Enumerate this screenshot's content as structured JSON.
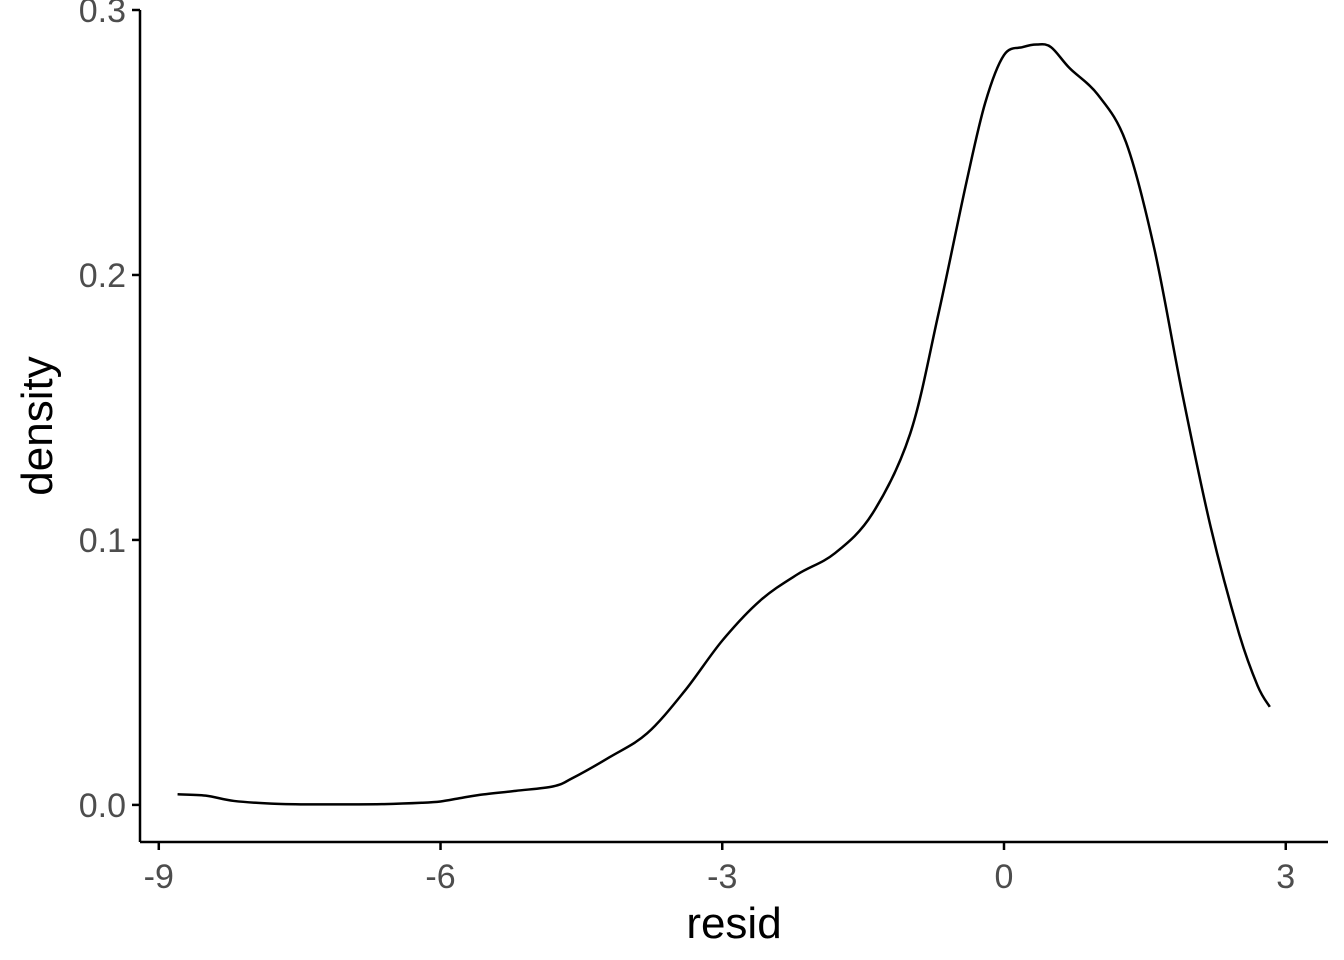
{
  "chart_data": {
    "type": "line",
    "title": "",
    "xlabel": "resid",
    "ylabel": "density",
    "xlim": [
      -9.2,
      3.45
    ],
    "ylim": [
      -0.014,
      0.3
    ],
    "x_ticks": [
      -9,
      -6,
      -3,
      0,
      3
    ],
    "x_tick_labels": [
      "-9",
      "-6",
      "-3",
      "0",
      "3"
    ],
    "y_ticks": [
      0.0,
      0.1,
      0.2,
      0.3
    ],
    "y_tick_labels": [
      "0.0",
      "0.1",
      "0.2",
      "0.3"
    ],
    "grid": false,
    "line_color": "#000000",
    "series": [
      {
        "x": [
          -8.8,
          -8.5,
          -8.2,
          -7.8,
          -7.4,
          -7.0,
          -6.6,
          -6.2,
          -6.0,
          -5.8,
          -5.6,
          -5.2,
          -4.8,
          -4.6,
          -4.2,
          -3.8,
          -3.4,
          -3.0,
          -2.6,
          -2.2,
          -1.8,
          -1.4,
          -1.0,
          -0.7,
          -0.4,
          -0.2,
          0.0,
          0.2,
          0.35,
          0.5,
          0.7,
          1.0,
          1.3,
          1.6,
          1.9,
          2.2,
          2.5,
          2.7,
          2.83
        ],
        "y": [
          0.004,
          0.0035,
          0.0015,
          0.0005,
          0.0002,
          0.0002,
          0.0003,
          0.0008,
          0.0013,
          0.0025,
          0.0037,
          0.0053,
          0.007,
          0.01,
          0.018,
          0.027,
          0.043,
          0.062,
          0.077,
          0.087,
          0.095,
          0.11,
          0.14,
          0.185,
          0.235,
          0.265,
          0.283,
          0.286,
          0.287,
          0.286,
          0.278,
          0.268,
          0.25,
          0.21,
          0.155,
          0.105,
          0.065,
          0.045,
          0.037
        ]
      }
    ]
  }
}
